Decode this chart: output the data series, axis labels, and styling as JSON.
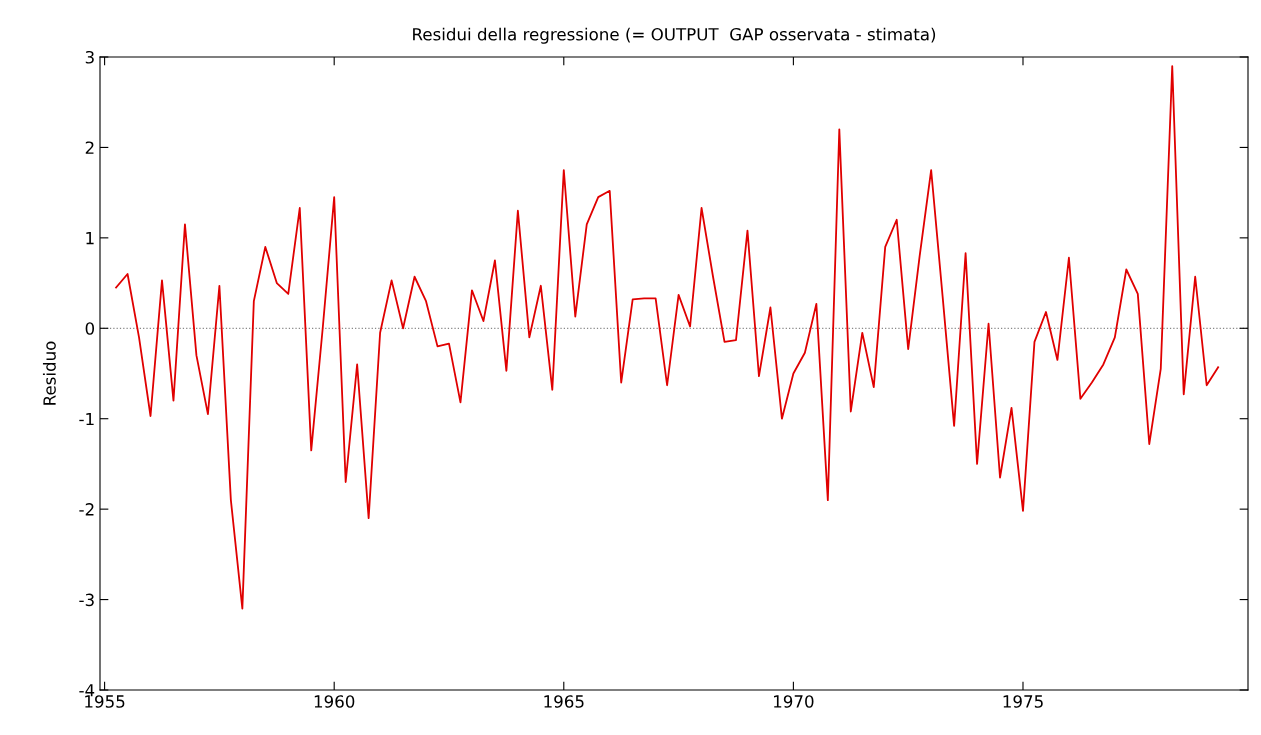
{
  "chart_data": {
    "type": "line",
    "title": "Residui della regressione (= OUTPUT  GAP osservata - stimata)",
    "ylabel": "Residuo",
    "xlim": [
      1954.9,
      1979.9
    ],
    "xticks": [
      1955,
      1960,
      1965,
      1970,
      1975
    ],
    "ylim": [
      -4,
      3
    ],
    "yticks": [
      -4,
      -3,
      -2,
      -1,
      0,
      1,
      2,
      3
    ],
    "grid": false,
    "legend": false,
    "ref_lines": [
      {
        "axis": "y",
        "value": 0,
        "color": "#888888",
        "line_style": "dotted"
      }
    ],
    "series": [
      {
        "color": "#e00000",
        "x": [
          1955.25,
          1955.5,
          1955.75,
          1956.0,
          1956.25,
          1956.5,
          1956.75,
          1957.0,
          1957.25,
          1957.5,
          1957.75,
          1958.0,
          1958.25,
          1958.5,
          1958.75,
          1959.0,
          1959.25,
          1959.5,
          1959.75,
          1960.0,
          1960.25,
          1960.5,
          1960.75,
          1961.0,
          1961.25,
          1961.5,
          1961.75,
          1962.0,
          1962.25,
          1962.5,
          1962.75,
          1963.0,
          1963.25,
          1963.5,
          1963.75,
          1964.0,
          1964.25,
          1964.5,
          1964.75,
          1965.0,
          1965.25,
          1965.5,
          1965.75,
          1966.0,
          1966.25,
          1966.5,
          1966.75,
          1967.0,
          1967.25,
          1967.5,
          1967.75,
          1968.0,
          1968.25,
          1968.5,
          1968.75,
          1969.0,
          1969.25,
          1969.5,
          1969.75,
          1970.0,
          1970.25,
          1970.5,
          1970.75,
          1971.0,
          1971.25,
          1971.5,
          1971.75,
          1972.0,
          1972.25,
          1972.5,
          1972.75,
          1973.0,
          1973.25,
          1973.5,
          1973.75,
          1974.0,
          1974.25,
          1974.5,
          1974.75,
          1975.0,
          1975.25,
          1975.5,
          1975.75,
          1976.0,
          1976.25,
          1976.5,
          1976.75,
          1977.0,
          1977.25,
          1977.5,
          1977.75,
          1978.0,
          1978.25,
          1978.5,
          1978.75,
          1979.0,
          1979.25
        ],
        "values": [
          0.45,
          0.6,
          -0.1,
          -0.97,
          0.53,
          -0.8,
          1.15,
          -0.3,
          -0.95,
          0.47,
          -1.9,
          -3.1,
          0.3,
          0.9,
          0.5,
          0.38,
          1.33,
          -1.35,
          0.0,
          1.45,
          -1.7,
          -0.4,
          -2.1,
          -0.05,
          0.53,
          0.0,
          0.57,
          0.3,
          -0.2,
          -0.17,
          -0.82,
          0.42,
          0.08,
          0.75,
          -0.47,
          1.3,
          -0.1,
          0.47,
          -0.68,
          1.75,
          0.13,
          1.15,
          1.45,
          1.52,
          -0.6,
          0.32,
          0.33,
          0.33,
          -0.63,
          0.37,
          0.02,
          1.33,
          0.57,
          -0.15,
          -0.13,
          1.08,
          -0.53,
          0.23,
          -1.0,
          -0.5,
          -0.27,
          0.27,
          -1.9,
          2.2,
          -0.92,
          -0.05,
          -0.65,
          0.9,
          1.2,
          -0.23,
          0.8,
          1.75,
          0.35,
          -1.08,
          0.83,
          -1.5,
          0.05,
          -1.65,
          -0.88,
          -2.02,
          -0.15,
          0.18,
          -0.35,
          0.78,
          -0.78,
          -0.6,
          -0.4,
          -0.1,
          0.65,
          0.38,
          -1.28,
          -0.45,
          2.9,
          -0.73,
          0.57,
          -0.63,
          -0.43
        ]
      }
    ]
  }
}
